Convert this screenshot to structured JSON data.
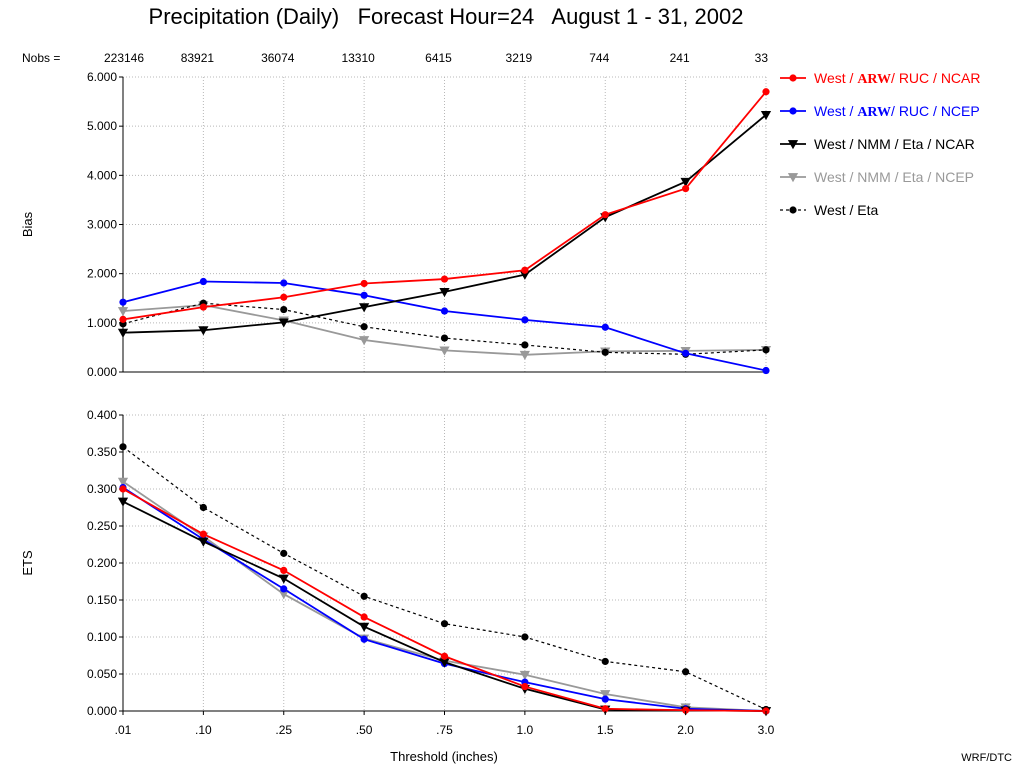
{
  "title": "Precipitation (Daily)   Forecast Hour=24   August 1 - 31, 2002",
  "credit": "WRF/DTC",
  "nobs_label": "Nobs =",
  "nobs": [
    "223146",
    "83921",
    "36074",
    "13310",
    "6415",
    "3219",
    "744",
    "241",
    "33"
  ],
  "legend": [
    {
      "series": 0,
      "parts": [
        "West / ",
        "ARW",
        "/ RUC / NCAR"
      ],
      "bold_index": 1
    },
    {
      "series": 1,
      "parts": [
        "West / ",
        "ARW",
        "/ RUC / NCEP"
      ],
      "bold_index": 1
    },
    {
      "series": 2,
      "parts": [
        "West / NMM / Eta / NCAR"
      ],
      "bold_index": -1
    },
    {
      "series": 3,
      "parts": [
        "West / NMM / Eta / NCEP"
      ],
      "bold_index": -1
    },
    {
      "series": 4,
      "parts": [
        "West / Eta"
      ],
      "bold_index": -1
    }
  ],
  "chart_data": {
    "type": "line",
    "x": [
      ".01",
      ".10",
      ".25",
      ".50",
      ".75",
      "1.0",
      "1.5",
      "2.0",
      "3.0"
    ],
    "xlabel": "Threshold (inches)",
    "grid": true,
    "legend_position": "right",
    "series_styles": [
      {
        "color": "#ff0000",
        "marker": "circle",
        "dash": false
      },
      {
        "color": "#0000ff",
        "marker": "circle",
        "dash": false
      },
      {
        "color": "#000000",
        "marker": "triangle-down",
        "dash": false
      },
      {
        "color": "#999999",
        "marker": "triangle-down",
        "dash": false
      },
      {
        "color": "#000000",
        "marker": "circle",
        "dash": true
      }
    ],
    "panels": [
      {
        "ylabel": "Bias",
        "ylim": [
          0,
          6
        ],
        "yticks": [
          "0.000",
          "1.000",
          "2.000",
          "3.000",
          "4.000",
          "5.000",
          "6.000"
        ],
        "series": [
          {
            "name": "West / ARW / RUC / NCAR",
            "values": [
              1.07,
              1.32,
              1.52,
              1.8,
              1.89,
              2.07,
              3.2,
              3.73,
              5.7
            ]
          },
          {
            "name": "West / ARW / RUC / NCEP",
            "values": [
              1.42,
              1.84,
              1.81,
              1.56,
              1.24,
              1.06,
              0.91,
              0.38,
              0.03
            ]
          },
          {
            "name": "West / NMM / Eta / NCAR",
            "values": [
              0.8,
              0.85,
              1.01,
              1.32,
              1.63,
              1.98,
              3.15,
              3.87,
              5.23
            ]
          },
          {
            "name": "West / NMM / Eta / NCEP",
            "values": [
              1.24,
              1.36,
              1.05,
              0.65,
              0.44,
              0.35,
              0.42,
              0.43,
              0.45
            ]
          },
          {
            "name": "West / Eta",
            "values": [
              0.98,
              1.4,
              1.27,
              0.92,
              0.69,
              0.55,
              0.4,
              0.36,
              0.45
            ]
          }
        ]
      },
      {
        "ylabel": "ETS",
        "ylim": [
          0,
          0.4
        ],
        "yticks": [
          "0.000",
          "0.050",
          "0.100",
          "0.150",
          "0.200",
          "0.250",
          "0.300",
          "0.350",
          "0.400"
        ],
        "series": [
          {
            "name": "West / ARW / RUC / NCAR",
            "values": [
              0.3,
              0.239,
              0.19,
              0.127,
              0.074,
              0.033,
              0.003,
              0.001,
              0.0
            ]
          },
          {
            "name": "West / ARW / RUC / NCEP",
            "values": [
              0.302,
              0.232,
              0.165,
              0.097,
              0.064,
              0.039,
              0.016,
              0.003,
              0.0
            ]
          },
          {
            "name": "West / NMM / Eta / NCAR",
            "values": [
              0.283,
              0.229,
              0.179,
              0.114,
              0.066,
              0.03,
              0.002,
              0.001,
              0.0
            ]
          },
          {
            "name": "West / NMM / Eta / NCEP",
            "values": [
              0.31,
              0.236,
              0.158,
              0.098,
              0.068,
              0.049,
              0.023,
              0.005,
              0.0
            ]
          },
          {
            "name": "West / Eta",
            "values": [
              0.357,
              0.275,
              0.213,
              0.155,
              0.118,
              0.1,
              0.067,
              0.053,
              0.002
            ]
          }
        ]
      }
    ]
  }
}
